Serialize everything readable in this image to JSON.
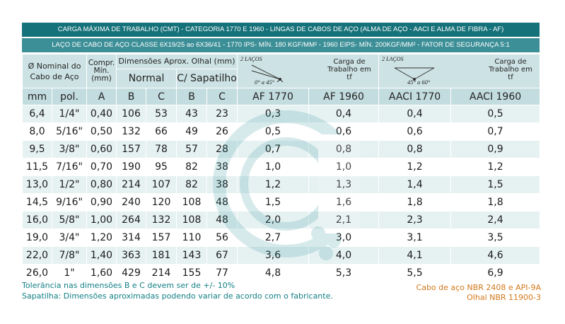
{
  "title_band": "CARGA MÁXIMA DE TRABALHO (CMT) - CATEGORIA 1770 E 1960 - LINGAS DE CABOS DE AÇO (ALMA DE AÇO - AACI E ALMA DE FIBRA - AF)",
  "subtitle_band": "LAÇO DE CABO DE AÇO CLASSE 6X19/25 ao 6X36/41 - 1770 IPS- MÍN. 180 KGF/MM² - 1960 EIPS- MÍN. 200KGF/MM² - FATOR DE SEGURANÇA 5:1",
  "headers": {
    "nominal": "Ø Nominal do Cabo de Aço",
    "compr": "Compr. Mín. (mm)",
    "dims": "Dimensões Aprox. Olhal (mm)",
    "normal": "Normal",
    "sapatilho": "C/ Sapatilho",
    "illus1": {
      "lacos": "2 LAÇOS",
      "angle": "0° a 45°",
      "carga": "Carga de Trabalho em tf"
    },
    "illus2": {
      "lacos": "2 LAÇOS",
      "angle": "45° a 60°",
      "carga": "Carga de Trabalho em tf"
    },
    "units": [
      "mm",
      "pol.",
      "A",
      "B",
      "C",
      "B",
      "C",
      "AF 1770",
      "AF 1960",
      "AACI 1770",
      "AACI 1960"
    ]
  },
  "rows": [
    [
      "6,4",
      "1/4\"",
      "0,40",
      "106",
      "53",
      "43",
      "23",
      "0,3",
      "0,4",
      "0,4",
      "0,5"
    ],
    [
      "8,0",
      "5/16\"",
      "0,50",
      "132",
      "66",
      "49",
      "26",
      "0,5",
      "0,6",
      "0,6",
      "0,7"
    ],
    [
      "9,5",
      "3/8\"",
      "0,60",
      "157",
      "78",
      "57",
      "28",
      "0,7",
      "0,8",
      "0,8",
      "0,9"
    ],
    [
      "11,5",
      "7/16\"",
      "0,70",
      "190",
      "95",
      "82",
      "38",
      "1,0",
      "1,0",
      "1,2",
      "1,2"
    ],
    [
      "13,0",
      "1/2\"",
      "0,80",
      "214",
      "107",
      "82",
      "38",
      "1,2",
      "1,3",
      "1,4",
      "1,5"
    ],
    [
      "14,5",
      "9/16\"",
      "0,90",
      "240",
      "120",
      "108",
      "48",
      "1,5",
      "1,6",
      "1,8",
      "1,8"
    ],
    [
      "16,0",
      "5/8\"",
      "1,00",
      "264",
      "132",
      "108",
      "48",
      "2,0",
      "2,1",
      "2,3",
      "2,4"
    ],
    [
      "19,0",
      "3/4\"",
      "1,20",
      "314",
      "157",
      "110",
      "56",
      "2,7",
      "3,0",
      "3,1",
      "3,5"
    ],
    [
      "22,0",
      "7/8\"",
      "1,40",
      "363",
      "181",
      "143",
      "67",
      "3,6",
      "4,0",
      "4,1",
      "4,6"
    ],
    [
      "26,0",
      "1\"",
      "1,60",
      "429",
      "214",
      "155",
      "77",
      "4,8",
      "5,3",
      "5,5",
      "6,9"
    ]
  ],
  "notes": [
    "Tolerância nas dimensões B e C devem ser de +/- 10%",
    "Sapatilha: Dimensões aproximadas podendo variar de acordo com o fabricante."
  ],
  "standards": [
    "Cabo de aço NBR 2408 e API-9A",
    "Olhal NBR 11900-3"
  ],
  "colors": {
    "band_dark": "#16727a",
    "band_light": "#3c8f97",
    "header_bg": "#cde2e4",
    "note_teal": "#137f85",
    "note_orange": "#d4781a"
  }
}
